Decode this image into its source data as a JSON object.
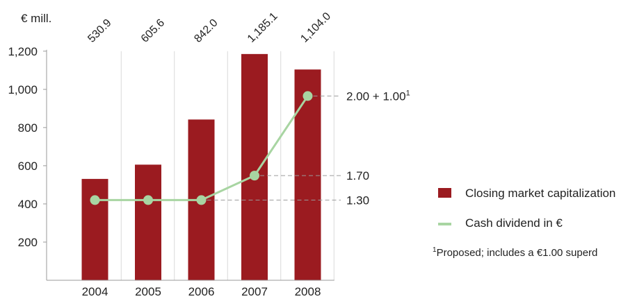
{
  "chart_data": {
    "type": "bar",
    "unit_label": "€ mill.",
    "categories": [
      "2004",
      "2005",
      "2006",
      "2007",
      "2008"
    ],
    "y_ticks": [
      "200",
      "400",
      "600",
      "800",
      "1,000",
      "1,200"
    ],
    "ylim": [
      0,
      1200
    ],
    "grid": "vertical lines above bars",
    "series": [
      {
        "name": "Closing market capitalization",
        "type": "bar",
        "values": [
          530.9,
          605.6,
          842.0,
          1185.1,
          1104.0
        ],
        "labels": [
          "530.9",
          "605.6",
          "842.0",
          "1,185.1",
          "1,104.0"
        ],
        "color": "#9b1b20"
      },
      {
        "name": "Cash dividend in €",
        "type": "line",
        "values": [
          1.3,
          1.3,
          1.3,
          1.7,
          3.0
        ],
        "color": "#a8d5a2"
      }
    ],
    "annotations": [
      {
        "category": "2008",
        "text": "2.00 + 1.00",
        "sup": "1"
      },
      {
        "category": "2007",
        "text": "1.70"
      },
      {
        "category": "2006",
        "text": "1.30"
      }
    ],
    "legend_position": "right",
    "footnote": {
      "sup": "1",
      "text": "Proposed; includes a €1.00 superd"
    }
  }
}
